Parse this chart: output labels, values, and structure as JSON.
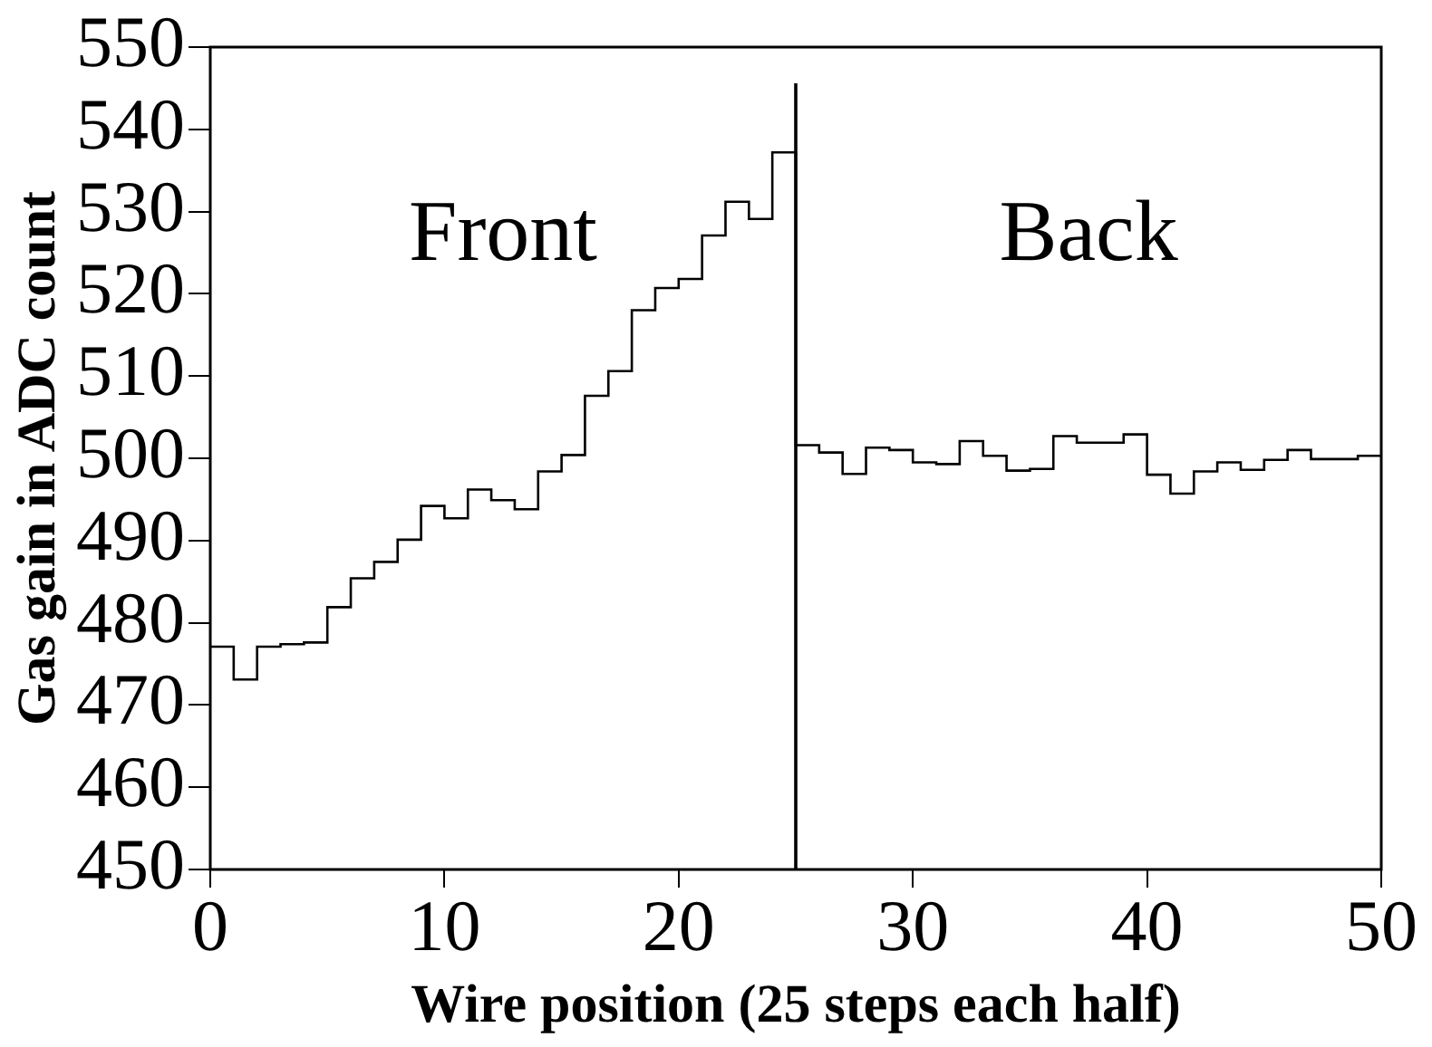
{
  "chart_data": {
    "type": "histogram",
    "xlabel": "Wire position (25 steps each half)",
    "ylabel": "Gas gain in ADC count",
    "bins": [
      0,
      1,
      2,
      3,
      4,
      5,
      6,
      7,
      8,
      9,
      10,
      11,
      12,
      13,
      14,
      15,
      16,
      17,
      18,
      19,
      20,
      21,
      22,
      23,
      24,
      25,
      26,
      27,
      28,
      29,
      30,
      31,
      32,
      33,
      34,
      35,
      36,
      37,
      38,
      39,
      40,
      41,
      42,
      43,
      44,
      45,
      46,
      47,
      48,
      49,
      50
    ],
    "values": [
      477.1,
      473.1,
      477.1,
      477.4,
      477.6,
      481.9,
      485.4,
      487.4,
      490.1,
      494.2,
      492.7,
      496.2,
      494.9,
      493.8,
      498.4,
      500.4,
      507.6,
      510.6,
      518.0,
      520.7,
      521.8,
      527.1,
      531.2,
      529.1,
      537.2,
      501.6,
      500.7,
      498.1,
      501.3,
      501.0,
      499.5,
      499.3,
      502.1,
      500.3,
      498.5,
      498.7,
      502.7,
      501.9,
      501.9,
      502.9,
      498.0,
      495.7,
      498.4,
      499.5,
      498.6,
      499.8,
      501.0,
      499.9,
      499.9,
      500.3
    ],
    "color": "#000000",
    "xlim": [
      0,
      50
    ],
    "xticks": [
      0,
      10,
      20,
      30,
      40,
      50
    ],
    "ylim": [
      450,
      550
    ],
    "yticks": [
      450,
      460,
      470,
      480,
      490,
      500,
      510,
      520,
      530,
      540,
      550
    ],
    "grid": false,
    "ref_lines": [
      {
        "axis": "x",
        "value": 25,
        "color": "#000000"
      }
    ],
    "annotations": [
      "Front",
      "Back"
    ]
  }
}
